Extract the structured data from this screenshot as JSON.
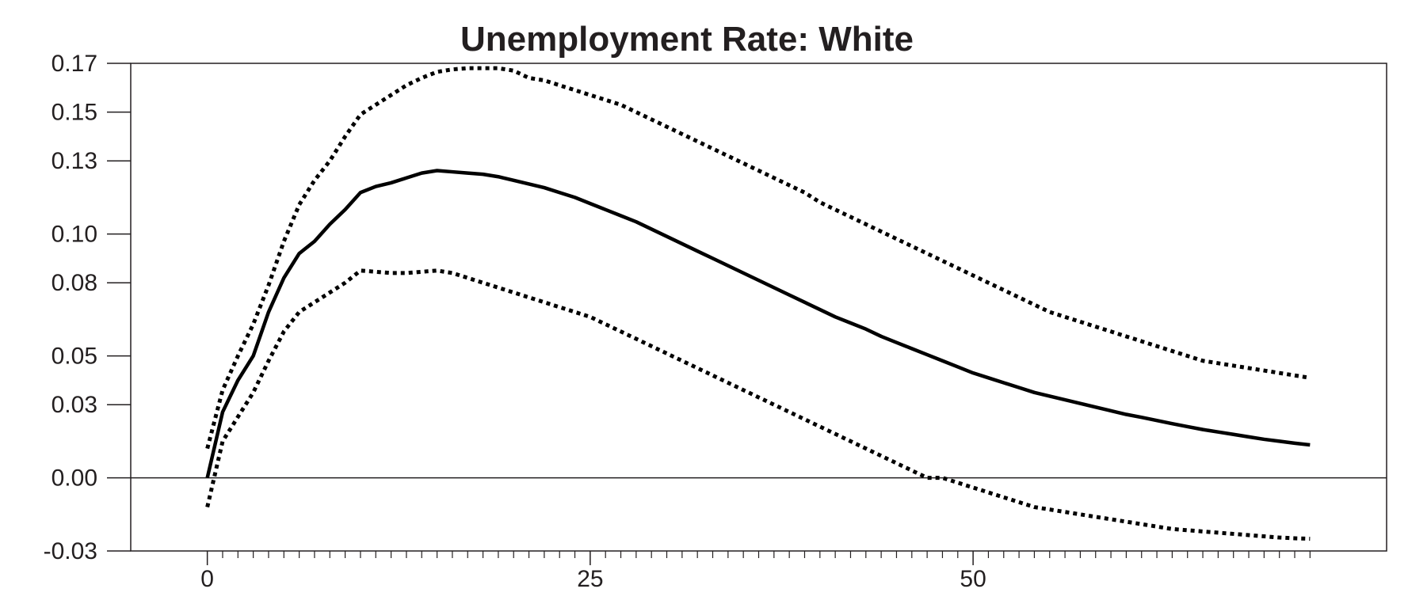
{
  "chart_data": {
    "type": "line",
    "title": "Unemployment Rate: White",
    "xlabel": "",
    "ylabel": "",
    "xlim": [
      -5,
      77
    ],
    "ylim": [
      -0.03,
      0.17
    ],
    "x_ticks": [
      0,
      25,
      50
    ],
    "x_tick_labels": [
      "0",
      "25",
      "50"
    ],
    "y_ticks": [
      -0.03,
      0.0,
      0.03,
      0.05,
      0.08,
      0.1,
      0.13,
      0.15,
      0.17
    ],
    "y_tick_labels": [
      "-0.03",
      "0.00",
      "0.03",
      "0.05",
      "0.08",
      "0.10",
      "0.13",
      "0.15",
      "0.17"
    ],
    "zero_line": true,
    "grid": false,
    "colors": {
      "line": "#000000",
      "axis": "#231f20",
      "text": "#231f20"
    },
    "x": [
      0,
      1,
      2,
      3,
      4,
      5,
      6,
      7,
      8,
      9,
      10,
      11,
      12,
      13,
      14,
      15,
      16,
      17,
      18,
      19,
      20,
      21,
      22,
      23,
      24,
      25,
      26,
      27,
      28,
      29,
      30,
      31,
      32,
      33,
      34,
      35,
      36,
      37,
      38,
      39,
      40,
      41,
      42,
      43,
      44,
      45,
      46,
      47,
      48,
      49,
      50,
      51,
      52,
      53,
      54,
      55,
      56,
      57,
      58,
      59,
      60,
      61,
      62,
      63,
      64,
      65,
      66,
      67,
      68,
      69,
      70,
      71,
      72
    ],
    "series": [
      {
        "style": "solid",
        "values": [
          0.0,
          0.027,
          0.04,
          0.05,
          0.068,
          0.082,
          0.092,
          0.097,
          0.104,
          0.11,
          0.117,
          0.1195,
          0.121,
          0.123,
          0.125,
          0.126,
          0.1255,
          0.125,
          0.1245,
          0.1235,
          0.122,
          0.1205,
          0.119,
          0.117,
          0.115,
          0.1125,
          0.11,
          0.1075,
          0.105,
          0.102,
          0.099,
          0.096,
          0.093,
          0.09,
          0.087,
          0.084,
          0.081,
          0.078,
          0.075,
          0.072,
          0.069,
          0.066,
          0.0635,
          0.061,
          0.058,
          0.0555,
          0.053,
          0.0505,
          0.048,
          0.0455,
          0.043,
          0.041,
          0.039,
          0.037,
          0.035,
          0.0335,
          0.032,
          0.0305,
          0.029,
          0.0275,
          0.026,
          0.0248,
          0.0235,
          0.0222,
          0.021,
          0.0198,
          0.0188,
          0.0178,
          0.0168,
          0.0158,
          0.015,
          0.0142,
          0.0135
        ]
      },
      {
        "style": "dotted",
        "values": [
          0.012,
          0.036,
          0.05,
          0.063,
          0.079,
          0.097,
          0.112,
          0.122,
          0.13,
          0.14,
          0.149,
          0.153,
          0.157,
          0.161,
          0.164,
          0.1665,
          0.1675,
          0.168,
          0.168,
          0.168,
          0.167,
          0.164,
          0.163,
          0.161,
          0.159,
          0.157,
          0.155,
          0.153,
          0.15,
          0.147,
          0.144,
          0.141,
          0.138,
          0.135,
          0.132,
          0.129,
          0.126,
          0.123,
          0.12,
          0.117,
          0.113,
          0.11,
          0.107,
          0.104,
          0.101,
          0.098,
          0.095,
          0.092,
          0.089,
          0.086,
          0.083,
          0.08,
          0.077,
          0.074,
          0.071,
          0.068,
          0.066,
          0.064,
          0.062,
          0.06,
          0.058,
          0.056,
          0.054,
          0.052,
          0.05,
          0.048,
          0.047,
          0.046,
          0.045,
          0.044,
          0.043,
          0.042,
          0.041
        ]
      },
      {
        "style": "dotted",
        "values": [
          -0.012,
          0.015,
          0.025,
          0.035,
          0.048,
          0.06,
          0.068,
          0.072,
          0.076,
          0.08,
          0.085,
          0.0845,
          0.084,
          0.084,
          0.0845,
          0.085,
          0.084,
          0.082,
          0.08,
          0.078,
          0.076,
          0.074,
          0.072,
          0.07,
          0.068,
          0.066,
          0.063,
          0.06,
          0.057,
          0.054,
          0.051,
          0.048,
          0.045,
          0.042,
          0.039,
          0.036,
          0.033,
          0.03,
          0.027,
          0.024,
          0.021,
          0.018,
          0.015,
          0.012,
          0.009,
          0.006,
          0.003,
          0.0,
          0.0,
          -0.002,
          -0.004,
          -0.006,
          -0.008,
          -0.01,
          -0.012,
          -0.013,
          -0.014,
          -0.015,
          -0.016,
          -0.017,
          -0.018,
          -0.019,
          -0.02,
          -0.021,
          -0.0215,
          -0.022,
          -0.0225,
          -0.023,
          -0.0235,
          -0.024,
          -0.0245,
          -0.0248,
          -0.025
        ]
      }
    ]
  }
}
